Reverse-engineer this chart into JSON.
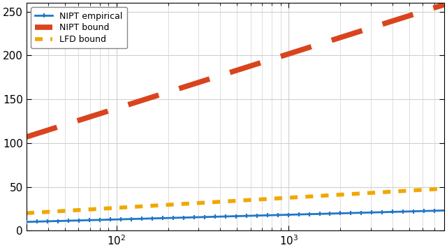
{
  "xlim": [
    30,
    8000
  ],
  "ylim": [
    0,
    260
  ],
  "yticks": [
    0,
    50,
    100,
    150,
    200,
    250
  ],
  "nipt_empirical_color": "#2176c7",
  "nipt_bound_color": "#d9441e",
  "lfd_bound_color": "#f0a800",
  "legend_labels": [
    "NIPT empirical",
    "NIPT bound",
    "LFD bound"
  ],
  "grid_color": "#d0d0d0",
  "background_color": "#ffffff",
  "nipt_empirical_start": 10.0,
  "nipt_empirical_end": 23.0,
  "nipt_bound_start": 107.0,
  "nipt_bound_end": 258.0,
  "lfd_bound_start": 20.0,
  "lfd_bound_end": 48.0
}
